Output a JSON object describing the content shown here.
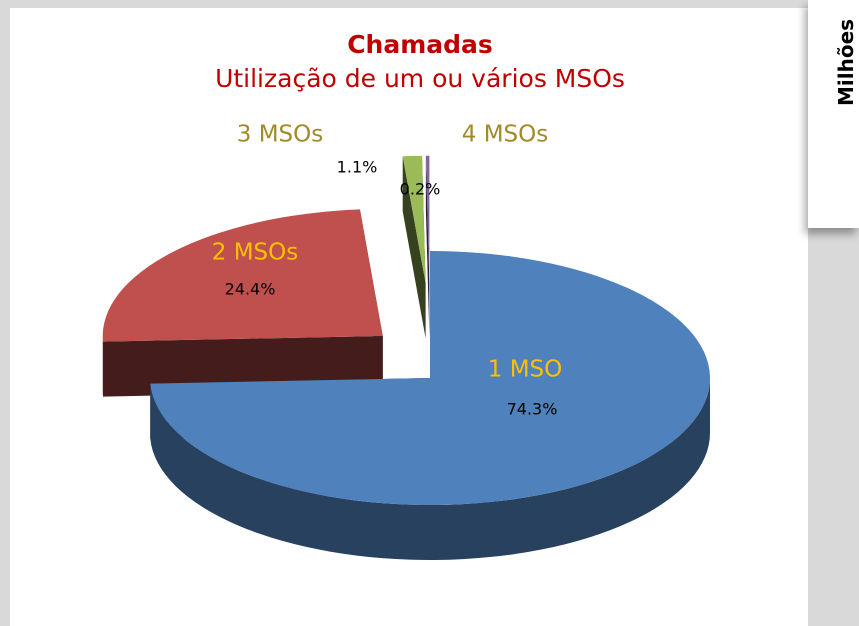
{
  "chart_data": {
    "type": "pie",
    "title": "Chamadas",
    "subtitle": "Utilização de um ou vários MSOs",
    "categories": [
      "1 MSO",
      "2 MSOs",
      "3 MSOs",
      "4 MSOs"
    ],
    "values": [
      74.3,
      24.4,
      1.1,
      0.2
    ],
    "value_labels": [
      "74.3%",
      "24.4%",
      "1.1%",
      "0.2%"
    ],
    "colors": [
      "#4f81bd",
      "#c0504d",
      "#9bbb59",
      "#8064a2"
    ]
  },
  "side_panel": {
    "axis_label": "Milhões"
  }
}
